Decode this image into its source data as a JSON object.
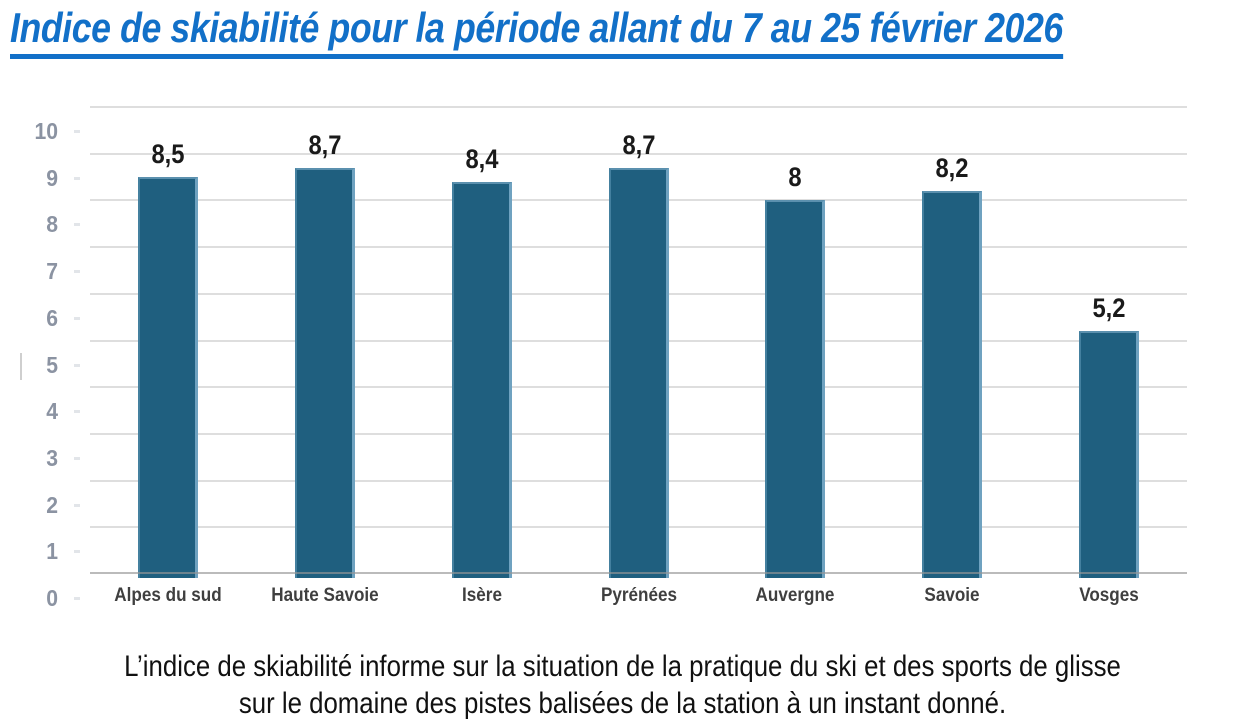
{
  "page": {
    "title": "Indice de skiabilité pour la période allant du 7 au 25 février 2026",
    "caption": {
      "line1": "L’indice de skiabilité informe sur la situation de la pratique du ski et des sports de glisse",
      "line2": "sur le domaine des pistes balisées de la station à un instant donné."
    }
  },
  "chart_data": {
    "type": "bar",
    "title": "Indice de skiabilité pour la période allant du 7 au 25 février 2026",
    "categories": [
      "Alpes du sud",
      "Haute Savoie",
      "Isère",
      "Pyrénées",
      "Auvergne",
      "Savoie",
      "Vosges"
    ],
    "values": [
      8.5,
      8.7,
      8.4,
      8.7,
      8,
      8.2,
      5.2
    ],
    "value_labels": [
      "8,5",
      "8,7",
      "8,4",
      "8,7",
      "8",
      "8,2",
      "5,2"
    ],
    "xlabel": "",
    "ylabel": "",
    "ylim": [
      0,
      10
    ],
    "yticks": [
      0,
      1,
      2,
      3,
      4,
      5,
      6,
      7,
      8,
      9,
      10
    ],
    "grid": true,
    "legend": false,
    "colors": {
      "bar_fill": "#1F5F7F",
      "bar_edge": "#6FA2C0",
      "gridline": "#DEDEDE",
      "axis_line": "#A0A0A0",
      "ytick_label": "#8B93A2",
      "category_label": "#3F3F3F",
      "value_label": "#1A1A1A",
      "title": "#1270C8",
      "caption": "#111111"
    }
  }
}
